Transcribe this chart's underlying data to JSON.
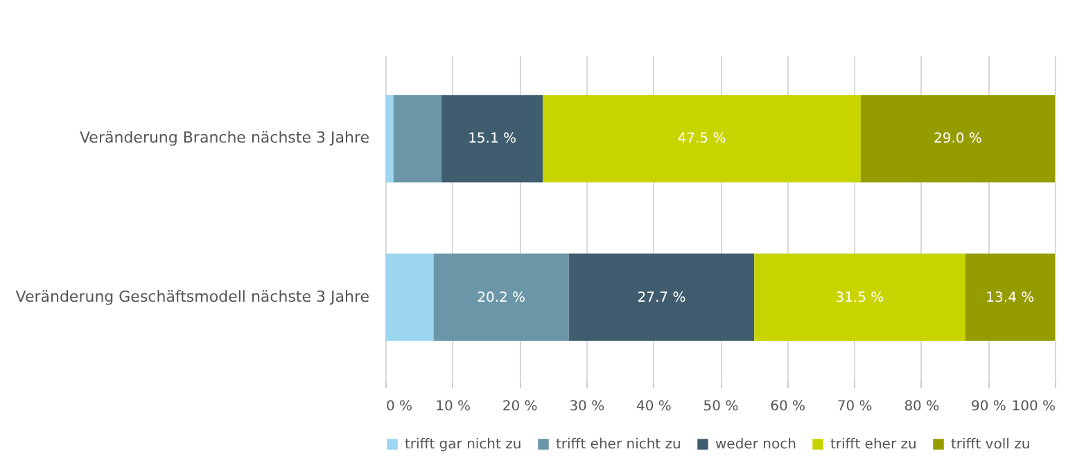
{
  "chart_data": {
    "type": "bar",
    "orientation": "horizontal",
    "stacked": true,
    "categories": [
      "Veränderung Branche nächste 3 Jahre",
      "Veränderung Geschäftsmodell nächste 3 Jahre"
    ],
    "series": [
      {
        "name": "trifft gar nicht zu",
        "color": "#9dd6ef",
        "values": [
          1.2,
          7.2
        ],
        "value_labels": [
          null,
          null
        ]
      },
      {
        "name": "trifft eher nicht zu",
        "color": "#6b96a8",
        "values": [
          7.2,
          20.2
        ],
        "value_labels": [
          null,
          "20.2 %"
        ]
      },
      {
        "name": "weder noch",
        "color": "#3f5d6e",
        "values": [
          15.1,
          27.7
        ],
        "value_labels": [
          "15.1 %",
          "27.7 %"
        ]
      },
      {
        "name": "trifft eher zu",
        "color": "#c8d400",
        "values": [
          47.5,
          31.5
        ],
        "value_labels": [
          "47.5 %",
          "31.5 %"
        ]
      },
      {
        "name": "trifft voll zu",
        "color": "#959c00",
        "values": [
          29.0,
          13.4
        ],
        "value_labels": [
          "29.0 %",
          "13.4 %"
        ]
      }
    ],
    "xlim": [
      0,
      100
    ],
    "xticks": [
      {
        "value": 0,
        "label": "0 %"
      },
      {
        "value": 10,
        "label": "10 %"
      },
      {
        "value": 20,
        "label": "20 %"
      },
      {
        "value": 30,
        "label": "30 %"
      },
      {
        "value": 40,
        "label": "40 %"
      },
      {
        "value": 50,
        "label": "50 %"
      },
      {
        "value": 60,
        "label": "60 %"
      },
      {
        "value": 70,
        "label": "70 %"
      },
      {
        "value": 80,
        "label": "80 %"
      },
      {
        "value": 90,
        "label": "90 %"
      },
      {
        "value": 100,
        "label": "100 %"
      }
    ],
    "grid": "x",
    "legend": "bottom"
  }
}
